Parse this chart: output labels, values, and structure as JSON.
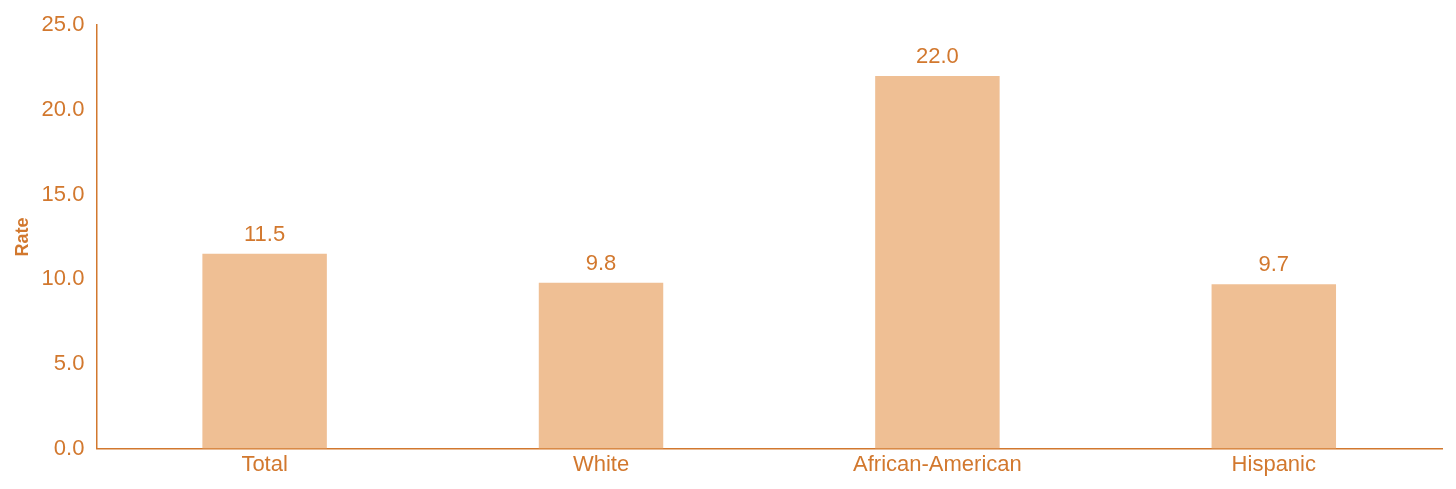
{
  "chart_data": {
    "type": "bar",
    "ylabel": "Rate",
    "categories": [
      "Total",
      "White",
      "African-American",
      "Hispanic"
    ],
    "values": [
      11.5,
      9.8,
      22.0,
      9.7
    ],
    "color": "#efbf94",
    "value_labels": [
      "11.5",
      "9.8",
      "22.0",
      "9.7"
    ],
    "ylim": [
      0,
      25
    ],
    "yticks": [
      {
        "value": 0,
        "label": "0.0"
      },
      {
        "value": 5,
        "label": "5.0"
      },
      {
        "value": 10,
        "label": "10.0"
      },
      {
        "value": 15,
        "label": "15.0"
      },
      {
        "value": 20,
        "label": "20.0"
      },
      {
        "value": 25,
        "label": "25.0"
      }
    ],
    "grid": false,
    "legend": false
  }
}
